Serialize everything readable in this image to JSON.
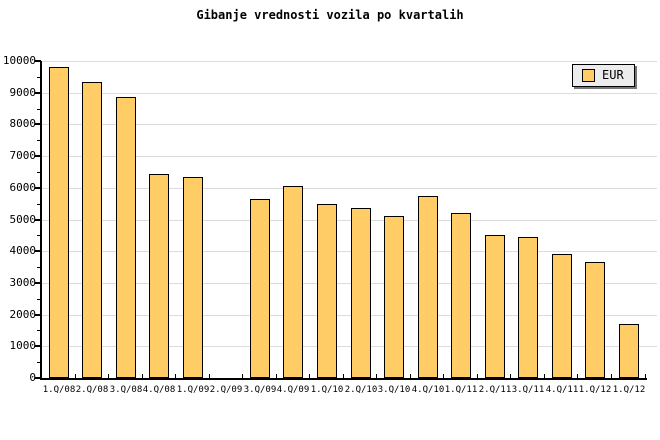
{
  "chart_data": {
    "type": "bar",
    "title": "Gibanje vrednosti vozila po kvartalih",
    "categories": [
      "1.Q/08",
      "2.Q/08",
      "3.Q/08",
      "4.Q/08",
      "1.Q/09",
      "2.Q/09",
      "3.Q/09",
      "4.Q/09",
      "1.Q/10",
      "2.Q/10",
      "3.Q/10",
      "4.Q/10",
      "1.Q/11",
      "2.Q/11",
      "3.Q/11",
      "4.Q/11",
      "1.Q/12",
      "1.Q/12"
    ],
    "series": [
      {
        "name": "EUR",
        "values": [
          9800,
          9350,
          8850,
          6450,
          6350,
          null,
          5650,
          6050,
          5500,
          5350,
          5100,
          5750,
          5200,
          4500,
          4450,
          3900,
          3650,
          1700
        ]
      }
    ],
    "xlabel": "",
    "ylabel": "",
    "ylim": [
      0,
      10000
    ],
    "y_major_step": 1000,
    "y_minor_step": 500,
    "y_tick_labels": [
      "0",
      "1000",
      "2000",
      "3000",
      "4000",
      "5000",
      "6000",
      "7000",
      "8000",
      "9000",
      "10000"
    ],
    "grid": "horizontal-major",
    "legend_position": "top-right",
    "colors": {
      "bar_fill": "#FFCC66",
      "bar_border": "#000000",
      "gridline": "#DCDCDC",
      "axis": "#000000",
      "text": "#000000",
      "legend_bg": "#ECECEC",
      "legend_shadow": "#777777",
      "background": "#FFFFFF"
    }
  }
}
